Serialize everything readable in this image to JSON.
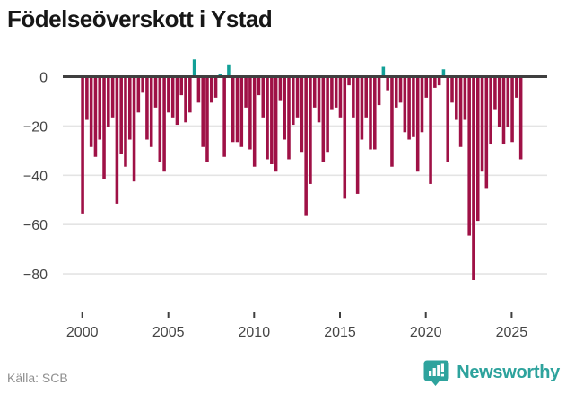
{
  "title": "Födelseöverskott i Ystad",
  "source": {
    "label": "Källa: SCB"
  },
  "branding": {
    "name": "Newsworthy",
    "icon": "newsworthy-speech-bubble-bar-chart-icon"
  },
  "colors": {
    "negative_bar": "#9f1146",
    "positive_bar": "#12a097",
    "axis_line": "#3f3f3f",
    "gridline": "#e4e4e4",
    "tick_text": "#454545",
    "source_text": "#8f8f8f",
    "brand_teal": "#2ea39d",
    "title_text": "#171717",
    "background": "#ffffff"
  },
  "chart_data": {
    "type": "bar",
    "title": "Födelseöverskott i Ystad",
    "frequency": "quarterly",
    "x_start": {
      "year": 2000,
      "quarter": 1
    },
    "x_end": {
      "year": 2025,
      "quarter": 3
    },
    "x_tick_labels": [
      "2000",
      "2005",
      "2010",
      "2015",
      "2020",
      "2025"
    ],
    "y_ticks": [
      0,
      -20,
      -40,
      -60,
      -80
    ],
    "y_tick_labels": [
      "0",
      "−20",
      "−40",
      "−60",
      "−80"
    ],
    "ylim": [
      -88,
      8
    ],
    "grid": true,
    "legend": false,
    "values_by_year": [
      {
        "year": 2000,
        "quarters": [
          -55,
          -17,
          -28,
          -32
        ]
      },
      {
        "year": 2001,
        "quarters": [
          -25,
          -41,
          -20,
          -16
        ]
      },
      {
        "year": 2002,
        "quarters": [
          -51,
          -31,
          -36,
          -25
        ]
      },
      {
        "year": 2003,
        "quarters": [
          -42,
          -14,
          -6,
          -25
        ]
      },
      {
        "year": 2004,
        "quarters": [
          -28,
          -12,
          -34,
          -38
        ]
      },
      {
        "year": 2005,
        "quarters": [
          -14,
          -16,
          -19,
          -7
        ]
      },
      {
        "year": 2006,
        "quarters": [
          -18,
          -14,
          7,
          -10
        ]
      },
      {
        "year": 2007,
        "quarters": [
          -28,
          -34,
          -10,
          -8
        ]
      },
      {
        "year": 2008,
        "quarters": [
          1,
          -32,
          5,
          -26
        ]
      },
      {
        "year": 2009,
        "quarters": [
          -26,
          -28,
          -12,
          -29
        ]
      },
      {
        "year": 2010,
        "quarters": [
          -36,
          -7,
          -16,
          -33
        ]
      },
      {
        "year": 2011,
        "quarters": [
          -35,
          -38,
          -9,
          -25
        ]
      },
      {
        "year": 2012,
        "quarters": [
          -33,
          -19,
          -16,
          -30
        ]
      },
      {
        "year": 2013,
        "quarters": [
          -56,
          -43,
          -12,
          -18
        ]
      },
      {
        "year": 2014,
        "quarters": [
          -34,
          -30,
          -13,
          -12
        ]
      },
      {
        "year": 2015,
        "quarters": [
          -16,
          -49,
          -3,
          -16
        ]
      },
      {
        "year": 2016,
        "quarters": [
          -47,
          -25,
          -16,
          -29
        ]
      },
      {
        "year": 2017,
        "quarters": [
          -29,
          -11,
          4,
          -5
        ]
      },
      {
        "year": 2018,
        "quarters": [
          -36,
          -12,
          -10,
          -22
        ]
      },
      {
        "year": 2019,
        "quarters": [
          -25,
          -24,
          -38,
          -22
        ]
      },
      {
        "year": 2020,
        "quarters": [
          -8,
          -43,
          -4,
          -3
        ]
      },
      {
        "year": 2021,
        "quarters": [
          3,
          -34,
          -10,
          -17
        ]
      },
      {
        "year": 2022,
        "quarters": [
          -28,
          -17,
          -64,
          -82
        ]
      },
      {
        "year": 2023,
        "quarters": [
          -58,
          -38,
          -45,
          -27
        ]
      },
      {
        "year": 2024,
        "quarters": [
          -13,
          -20,
          -27,
          -20
        ]
      },
      {
        "year": 2025,
        "quarters": [
          -26,
          -8,
          -33
        ]
      }
    ]
  }
}
